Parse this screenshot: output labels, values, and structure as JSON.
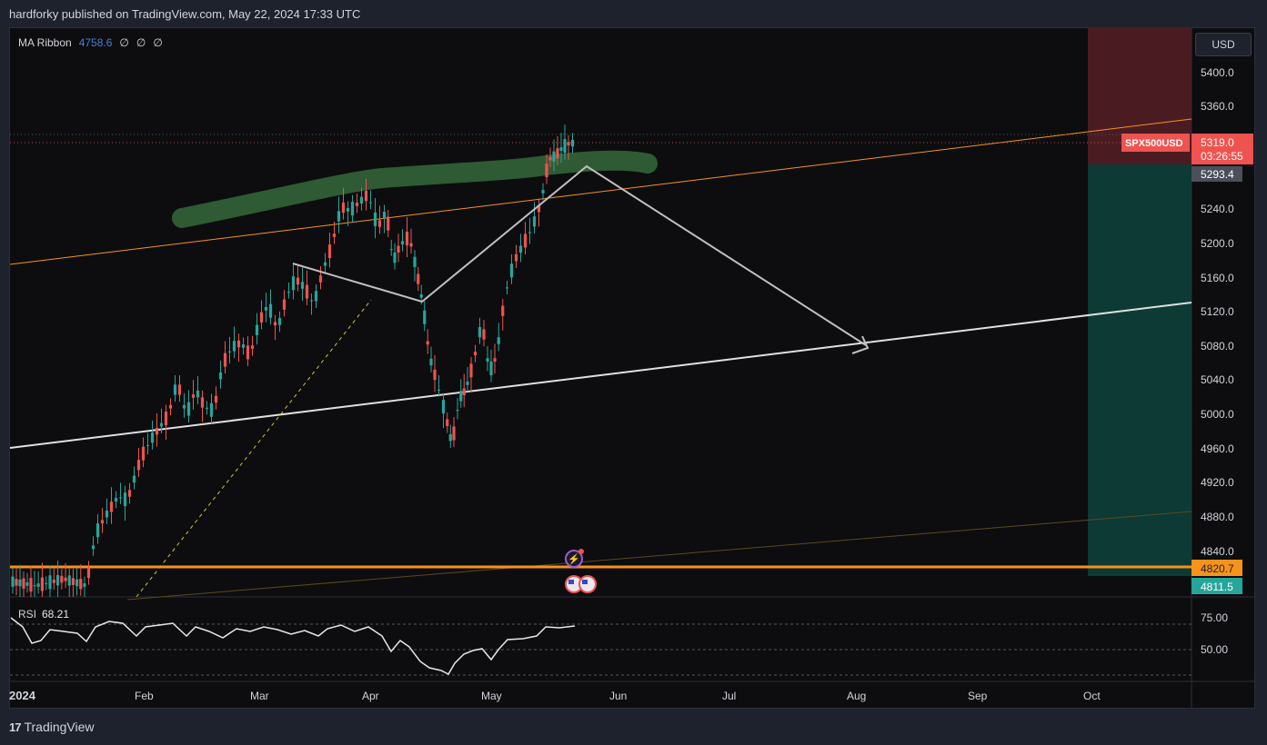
{
  "header": {
    "text": "hardforky published on TradingView.com, May 22, 2024 17:33 UTC"
  },
  "legend": {
    "name": "MA Ribbon",
    "value": "4758.6",
    "others": [
      "∅",
      "∅",
      "∅"
    ]
  },
  "currency_button": "USD",
  "price_axis": {
    "ticks": [
      "5400.0",
      "5360.0",
      "5240.0",
      "5200.0",
      "5160.0",
      "5120.0",
      "5080.0",
      "5040.0",
      "5000.0",
      "4960.0",
      "4920.0",
      "4880.0",
      "4840.0"
    ],
    "symbol_tag": "SPX500USD",
    "last_price": "5319.0",
    "countdown": "03:26:55",
    "label_5293": "5293.4",
    "label_4820": "4820.7",
    "label_4811": "4811.5"
  },
  "rsi": {
    "label": "RSI",
    "value": "68.21",
    "ticks": [
      "75.00",
      "50.00"
    ]
  },
  "time_axis": {
    "labels": [
      "2024",
      "Feb",
      "Mar",
      "Apr",
      "May",
      "Jun",
      "Jul",
      "Aug",
      "Sep",
      "Oct"
    ]
  },
  "footer": {
    "brand": "TradingView"
  },
  "colors": {
    "up": "#26a69a",
    "down": "#ef5350",
    "orange": "#f7931a",
    "bg": "#0d0d0f",
    "green_highlight": "#2e5a34",
    "stop_zone": "#4a1c22",
    "target_zone": "#0d3a34"
  },
  "chart_data": {
    "type": "candlestick",
    "symbol": "SPX500USD",
    "ylim": [
      4790,
      5440
    ],
    "x_months": [
      "2024",
      "Feb",
      "Mar",
      "Apr",
      "May",
      "Jun",
      "Jul",
      "Aug",
      "Sep",
      "Oct"
    ],
    "closes_sample": [
      [
        "2024-01-22",
        4850
      ],
      [
        "2024-02-01",
        4930
      ],
      [
        "2024-02-15",
        5010
      ],
      [
        "2024-03-01",
        5120
      ],
      [
        "2024-03-20",
        5220
      ],
      [
        "2024-04-01",
        5260
      ],
      [
        "2024-04-19",
        4980
      ],
      [
        "2024-05-01",
        5030
      ],
      [
        "2024-05-15",
        5300
      ],
      [
        "2024-05-22",
        5319
      ]
    ],
    "last_price": 5319.0,
    "levels": [
      5293.4,
      4820.7,
      4811.5
    ],
    "rsi_last": 68.21,
    "rsi_levels": [
      75,
      50
    ]
  }
}
